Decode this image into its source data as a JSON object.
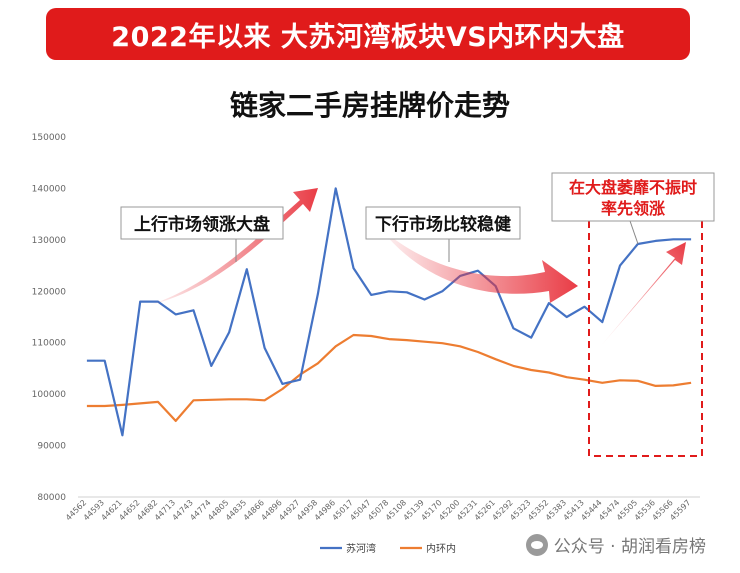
{
  "banner": {
    "text": "2022年以来 大苏河湾板块VS内环内大盘"
  },
  "chart_data": {
    "type": "line",
    "title": "链家二手房挂牌价走势",
    "x": [
      "44562",
      "44593",
      "44621",
      "44652",
      "44682",
      "44713",
      "44743",
      "44774",
      "44805",
      "44835",
      "44866",
      "44896",
      "44927",
      "44958",
      "44986",
      "45017",
      "45047",
      "45078",
      "45108",
      "45139",
      "45170",
      "45200",
      "45231",
      "45261",
      "45292",
      "45323",
      "45352",
      "45383",
      "45413",
      "45444",
      "45474",
      "45505",
      "45536",
      "45566",
      "45597"
    ],
    "series": [
      {
        "name": "苏河湾",
        "color": "#4472c4",
        "values": [
          106500,
          106500,
          92000,
          118000,
          118000,
          115500,
          116300,
          105500,
          112000,
          124300,
          109000,
          102000,
          102800,
          119500,
          140000,
          124500,
          119300,
          120000,
          119800,
          118400,
          120000,
          123000,
          124000,
          121000,
          112800,
          111000,
          117700,
          115000,
          117000,
          114000,
          125000,
          129200,
          129800,
          130100,
          130100
        ]
      },
      {
        "name": "内环内",
        "color": "#ed7d31",
        "values": [
          97700,
          97700,
          97900,
          98200,
          98500,
          94800,
          98800,
          98900,
          99000,
          99000,
          98800,
          101000,
          103800,
          106000,
          109300,
          111500,
          111300,
          110700,
          110500,
          110200,
          109900,
          109300,
          108200,
          106800,
          105500,
          104700,
          104200,
          103300,
          102800,
          102200,
          102700,
          102600,
          101600,
          101700,
          102200
        ]
      }
    ],
    "ylim": [
      80000,
      150000
    ],
    "yticks": [
      80000,
      90000,
      100000,
      110000,
      120000,
      130000,
      140000,
      150000
    ],
    "grid": false,
    "legend": "bottom"
  },
  "annotations": {
    "up_market": "上行市场领涨大盘",
    "down_market": "下行市场比较稳健",
    "recent": [
      "在大盘萎靡不振时",
      "率先领涨"
    ]
  },
  "colors": {
    "banner": "#e01b1b",
    "arrow": "#e8323c",
    "dash_box": "#e01b1b"
  },
  "watermark": {
    "text": "公众号 · 胡润看房榜",
    "icon": "wechat-icon"
  }
}
